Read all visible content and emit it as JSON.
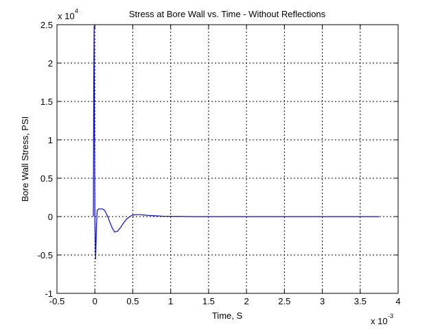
{
  "chart_data": {
    "type": "line",
    "title": "Stress at Bore Wall vs. Time - Without Reflections",
    "xlabel": "Time, S",
    "ylabel": "Bore Wall Stress, PSI",
    "x_multiplier_label": "x 10",
    "x_multiplier_exponent": "-3",
    "y_multiplier_label": "x 10",
    "y_multiplier_exponent": "4",
    "xlim": [
      -0.5,
      4
    ],
    "ylim": [
      -1,
      2.5
    ],
    "x_ticks": [
      -0.5,
      0,
      0.5,
      1,
      1.5,
      2,
      2.5,
      3,
      3.5,
      4
    ],
    "x_tick_labels": [
      "-0.5",
      "0",
      "0.5",
      "1",
      "1.5",
      "2",
      "2.5",
      "3",
      "3.5",
      "4"
    ],
    "y_ticks": [
      -1,
      -0.5,
      0,
      0.5,
      1,
      1.5,
      2,
      2.5
    ],
    "y_tick_labels": [
      "-1",
      "-0.5",
      "0",
      "0.5",
      "1",
      "1.5",
      "2",
      "2.5"
    ],
    "grid": true,
    "line_color": "#0000ff",
    "grid_color": "#000000",
    "series": [
      {
        "x": [
          -0.02,
          -0.015,
          -0.01,
          -0.005,
          0.0,
          0.005,
          0.01,
          0.02,
          0.03,
          0.05,
          0.07,
          0.1,
          0.13,
          0.17,
          0.2,
          0.23,
          0.26,
          0.3,
          0.34,
          0.38,
          0.42,
          0.46,
          0.5,
          0.55,
          0.6,
          0.65,
          0.7,
          0.8,
          0.9,
          1.0,
          1.1,
          1.2,
          1.3,
          1.5,
          2.0,
          2.5,
          3.0,
          3.5,
          3.75
        ],
        "y": [
          0.0,
          1.7,
          2.48,
          1.0,
          -0.05,
          -0.3,
          -0.55,
          -0.15,
          0.08,
          0.1,
          0.1,
          0.1,
          0.08,
          0.0,
          -0.08,
          -0.15,
          -0.2,
          -0.19,
          -0.14,
          -0.08,
          -0.03,
          0.0,
          0.02,
          0.025,
          0.025,
          0.02,
          0.015,
          0.01,
          0.005,
          0.003,
          0.002,
          0.001,
          0.0,
          0.0,
          0.0,
          0.0,
          0.0,
          0.0,
          0.0
        ]
      }
    ]
  }
}
